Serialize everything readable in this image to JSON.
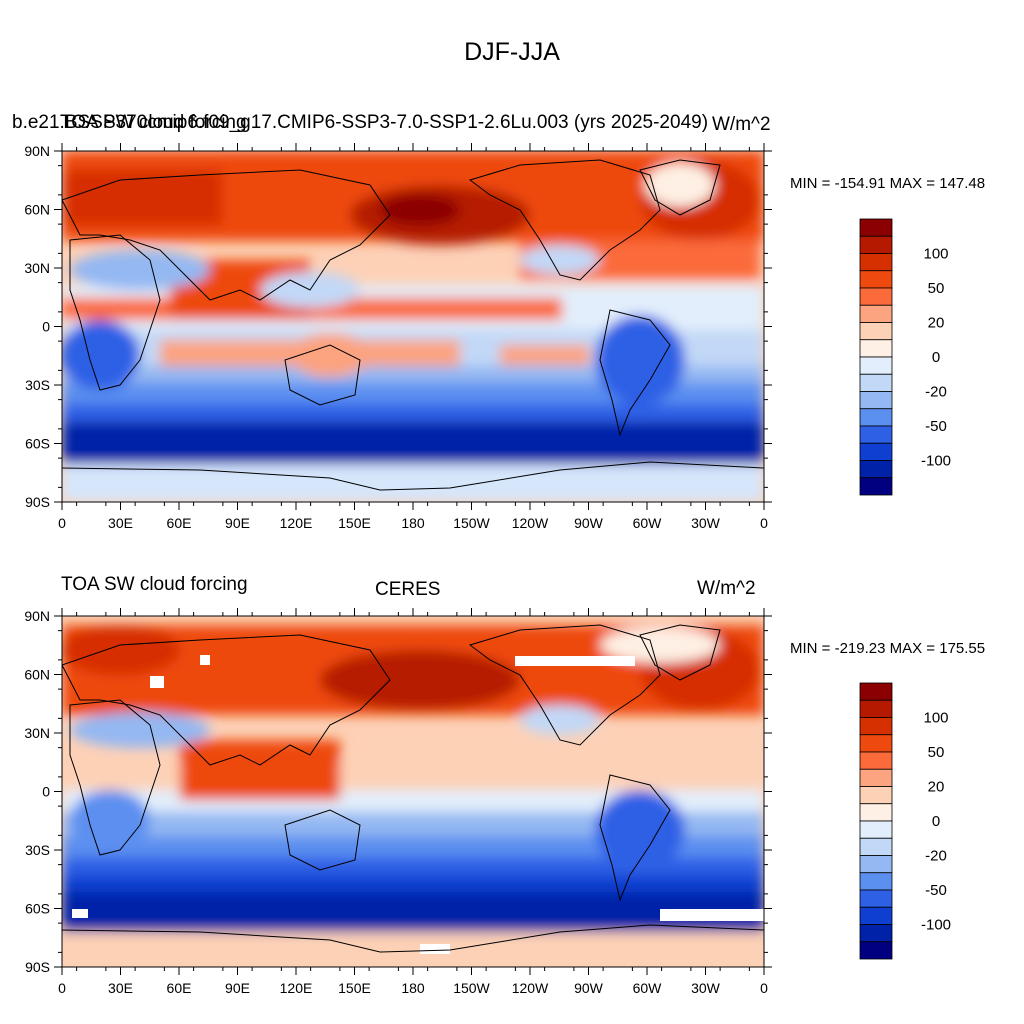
{
  "title": "DJF-JJA",
  "panels": [
    {
      "left_label": "TOA SW cloud forcing",
      "center_label": "b.e21.BSSP370cmip6.f09_g17.CMIP6-SSP3-7.0-SSP1-2.6Lu.003 (yrs 2025-2049)",
      "units": "W/m^2",
      "minmax": "MIN = -154.91 MAX = 147.48",
      "x_ticks": [
        "0",
        "30E",
        "60E",
        "90E",
        "120E",
        "150E",
        "180",
        "150W",
        "120W",
        "90W",
        "60W",
        "30W",
        "0"
      ],
      "y_ticks": [
        "90N",
        "60N",
        "30N",
        "0",
        "30S",
        "60S",
        "90S"
      ],
      "colorbar_labels": [
        "100",
        "50",
        "20",
        "0",
        "-20",
        "-50",
        "-100"
      ],
      "colorbar_colors": [
        "#8b0000",
        "#b51a00",
        "#d62f00",
        "#ee4a10",
        "#fb6a3a",
        "#fca37f",
        "#fdd1b6",
        "#fef0e4",
        "#e2eefb",
        "#c2d8f7",
        "#94b8f2",
        "#5b8ff0",
        "#2e60e6",
        "#0f3fd0",
        "#0022a8",
        "#000080"
      ]
    },
    {
      "left_label": "TOA SW cloud forcing",
      "center_label": "CERES",
      "units": "W/m^2",
      "minmax": "MIN = -219.23 MAX = 175.55",
      "x_ticks": [
        "0",
        "30E",
        "60E",
        "90E",
        "120E",
        "150E",
        "180",
        "150W",
        "120W",
        "90W",
        "60W",
        "30W",
        "0"
      ],
      "y_ticks": [
        "90N",
        "60N",
        "30N",
        "0",
        "30S",
        "60S",
        "90S"
      ],
      "colorbar_labels": [
        "100",
        "50",
        "20",
        "0",
        "-20",
        "-50",
        "-100"
      ],
      "colorbar_colors": [
        "#8b0000",
        "#b51a00",
        "#d62f00",
        "#ee4a10",
        "#fb6a3a",
        "#fca37f",
        "#fdd1b6",
        "#fef0e4",
        "#e2eefb",
        "#c2d8f7",
        "#94b8f2",
        "#5b8ff0",
        "#2e60e6",
        "#0f3fd0",
        "#0022a8",
        "#000080"
      ]
    }
  ]
}
